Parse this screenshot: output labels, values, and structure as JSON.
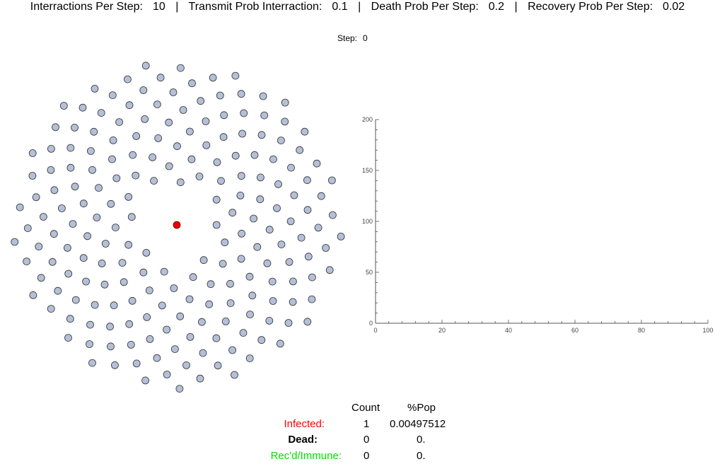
{
  "params": [
    {
      "label": "Interractions Per Step:",
      "value": "10"
    },
    {
      "label": "Transmit Prob Interraction:",
      "value": "0.1"
    },
    {
      "label": "Death Prob Per Step:",
      "value": "0.2"
    },
    {
      "label": "Recovery Prob Per Step:",
      "value": "0.02"
    }
  ],
  "separator": "|",
  "step": {
    "label": "Step:",
    "value": "0"
  },
  "colors": {
    "healthy": "#b4c0d8",
    "infected": "#ee0000",
    "outline": "#333333",
    "axis": "#555555"
  },
  "population": {
    "total": 201,
    "infected": 1
  },
  "stats": {
    "headers": {
      "count": "Count",
      "pct": "%Pop"
    },
    "rows": [
      {
        "label": "Infected:",
        "count": "1",
        "pct": "0.00497512"
      },
      {
        "label": "Dead:",
        "count": "0",
        "pct": "0."
      },
      {
        "label": "Rec'd/Immune:",
        "count": "0",
        "pct": "0."
      }
    ]
  },
  "chart_data": {
    "type": "line",
    "series": [],
    "xlim": [
      0,
      100
    ],
    "ylim": [
      0,
      200
    ],
    "x_ticks": [
      0,
      20,
      40,
      60,
      80,
      100
    ],
    "y_ticks": [
      0,
      50,
      100,
      150,
      200
    ],
    "title": "",
    "xlabel": "",
    "ylabel": ""
  }
}
